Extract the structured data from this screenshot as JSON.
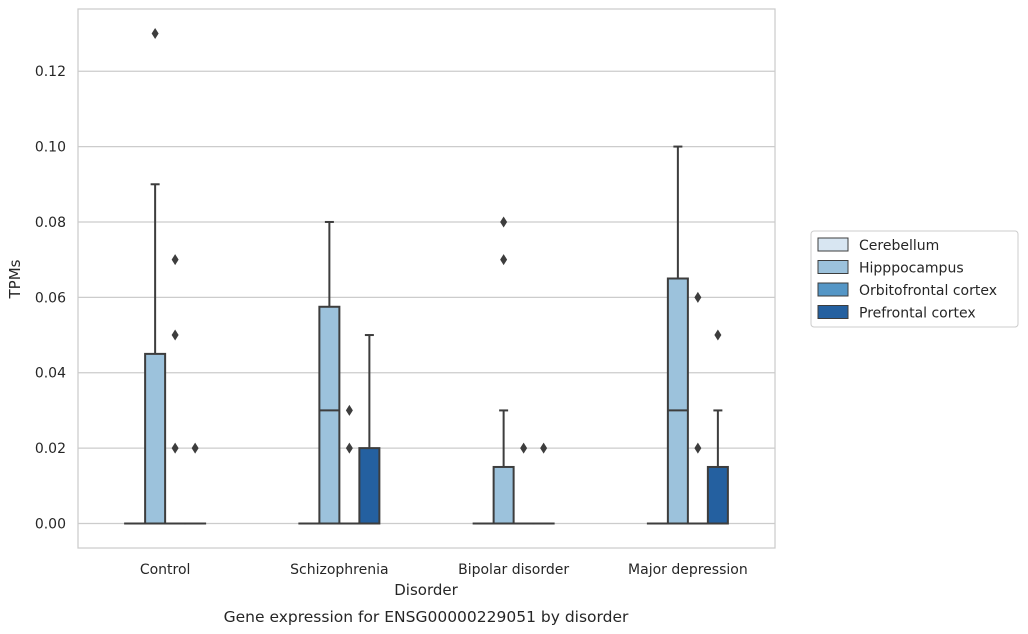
{
  "chart_data": {
    "type": "boxplot",
    "title": "",
    "caption": "Gene expression for ENSG00000229051 by disorder",
    "xlabel": "Disorder",
    "ylabel": "TPMs",
    "ylim": [
      -0.0065,
      0.1365
    ],
    "yticks": [
      0.0,
      0.02,
      0.04,
      0.06,
      0.08,
      0.1,
      0.12
    ],
    "ytick_labels": [
      "0.00",
      "0.02",
      "0.04",
      "0.06",
      "0.08",
      "0.10",
      "0.12"
    ],
    "grid": "horizontal",
    "legend_position": "right",
    "categories": [
      "Control",
      "Schizophrenia",
      "Bipolar disorder",
      "Major depression"
    ],
    "series": [
      {
        "name": "Cerebellum",
        "color": "#d8e6f2",
        "boxes": [
          {
            "q1": 0,
            "median": 0,
            "q3": 0,
            "whisker_low": 0,
            "whisker_high": 0,
            "outliers": []
          },
          {
            "q1": 0,
            "median": 0,
            "q3": 0,
            "whisker_low": 0,
            "whisker_high": 0,
            "outliers": []
          },
          {
            "q1": 0,
            "median": 0,
            "q3": 0,
            "whisker_low": 0,
            "whisker_high": 0,
            "outliers": []
          },
          {
            "q1": 0,
            "median": 0,
            "q3": 0,
            "whisker_low": 0,
            "whisker_high": 0,
            "outliers": []
          }
        ]
      },
      {
        "name": "Hipppocampus",
        "color": "#9cc2dc",
        "boxes": [
          {
            "q1": 0,
            "median": 0,
            "q3": 0.045,
            "whisker_low": 0,
            "whisker_high": 0.09,
            "outliers": [
              0.13
            ]
          },
          {
            "q1": 0,
            "median": 0.03,
            "q3": 0.0575,
            "whisker_low": 0,
            "whisker_high": 0.08,
            "outliers": []
          },
          {
            "q1": 0,
            "median": 0,
            "q3": 0.015,
            "whisker_low": 0,
            "whisker_high": 0.03,
            "outliers": [
              0.07,
              0.08
            ]
          },
          {
            "q1": 0,
            "median": 0.03,
            "q3": 0.065,
            "whisker_low": 0,
            "whisker_high": 0.1,
            "outliers": []
          }
        ]
      },
      {
        "name": "Orbitofrontal cortex",
        "color": "#5496c6",
        "boxes": [
          {
            "q1": 0,
            "median": 0,
            "q3": 0,
            "whisker_low": 0,
            "whisker_high": 0,
            "outliers": [
              0.02,
              0.05,
              0.07
            ]
          },
          {
            "q1": 0,
            "median": 0,
            "q3": 0,
            "whisker_low": 0,
            "whisker_high": 0,
            "outliers": [
              0.02,
              0.03
            ]
          },
          {
            "q1": 0,
            "median": 0,
            "q3": 0,
            "whisker_low": 0,
            "whisker_high": 0,
            "outliers": [
              0.02
            ]
          },
          {
            "q1": 0,
            "median": 0,
            "q3": 0,
            "whisker_low": 0,
            "whisker_high": 0,
            "outliers": [
              0.02,
              0.06
            ]
          }
        ]
      },
      {
        "name": "Prefrontal cortex",
        "color": "#2460a0",
        "boxes": [
          {
            "q1": 0,
            "median": 0,
            "q3": 0,
            "whisker_low": 0,
            "whisker_high": 0,
            "outliers": [
              0.02
            ]
          },
          {
            "q1": 0,
            "median": 0,
            "q3": 0.02,
            "whisker_low": 0,
            "whisker_high": 0.05,
            "outliers": []
          },
          {
            "q1": 0,
            "median": 0,
            "q3": 0,
            "whisker_low": 0,
            "whisker_high": 0,
            "outliers": [
              0.02
            ]
          },
          {
            "q1": 0,
            "median": 0,
            "q3": 0.015,
            "whisker_low": 0,
            "whisker_high": 0.03,
            "outliers": [
              0.05
            ]
          }
        ]
      }
    ]
  }
}
